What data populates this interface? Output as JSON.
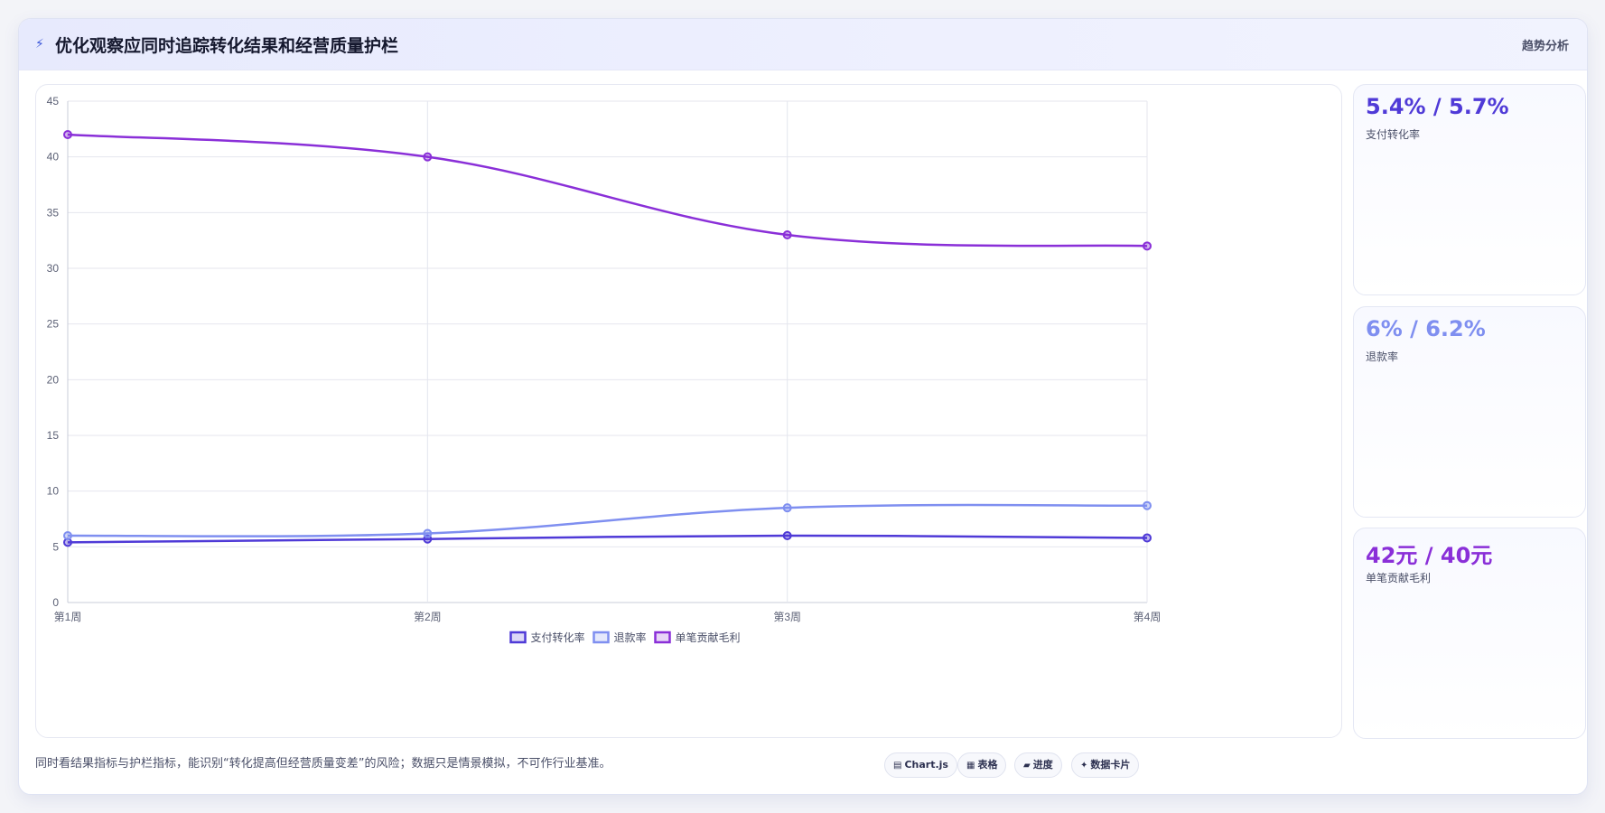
{
  "header": {
    "icon": "lightning-icon",
    "title": "优化观察应同时追踪转化结果和经营质量护栏",
    "tag": "趋势分析"
  },
  "kpis": [
    {
      "value": "5.4% / 5.7%",
      "label": "支付转化率",
      "color": "#4f3ad7"
    },
    {
      "value": "6% / 6.2%",
      "label": "退款率",
      "color": "#7f8ff0"
    },
    {
      "value": "42元 / 40元",
      "label": "单笔贡献毛利",
      "color": "#8a2fd8"
    }
  ],
  "footer": {
    "note": "同时看结果指标与护栏指标，能识别“转化提高但经营质量变差”的风险；数据只是情景模拟，不可作行业基准。",
    "chips": [
      {
        "icon": "chart-icon",
        "glyph": "▤",
        "label": "Chart.js"
      },
      {
        "icon": "table-icon",
        "glyph": "▦",
        "label": "表格"
      },
      {
        "icon": "progress-icon",
        "glyph": "▰",
        "label": "进度"
      },
      {
        "icon": "card-icon",
        "glyph": "✦",
        "label": "数据卡片"
      }
    ]
  },
  "chart_data": {
    "type": "line",
    "categories": [
      "第1周",
      "第2周",
      "第3周",
      "第4周"
    ],
    "ylim": [
      0,
      45
    ],
    "yticks": [
      0,
      5,
      10,
      15,
      20,
      25,
      30,
      35,
      40,
      45
    ],
    "grid": true,
    "legend_position": "bottom",
    "series": [
      {
        "name": "支付转化率",
        "values": [
          5.4,
          5.7,
          6.0,
          5.8
        ],
        "color": "#4f3ad7"
      },
      {
        "name": "退款率",
        "values": [
          6.0,
          6.2,
          8.5,
          8.7
        ],
        "color": "#7f8ff0"
      },
      {
        "name": "单笔贡献毛利",
        "values": [
          42,
          40,
          33,
          32
        ],
        "color": "#8a2fd8"
      }
    ]
  }
}
